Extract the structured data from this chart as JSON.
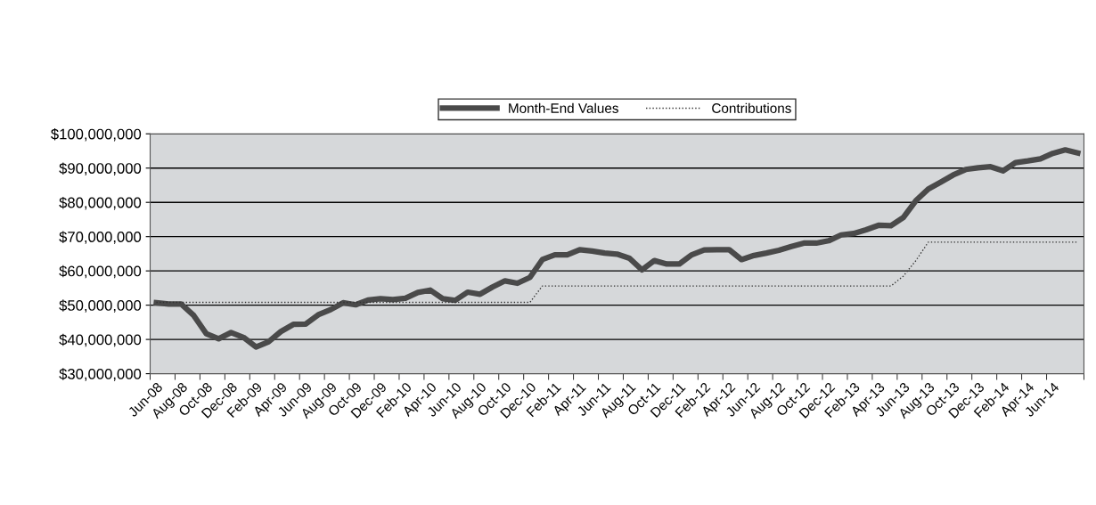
{
  "chart_data": {
    "type": "line",
    "categories": [
      "Jun-08",
      null,
      "Aug-08",
      null,
      "Oct-08",
      null,
      "Dec-08",
      null,
      "Feb-09",
      null,
      "Apr-09",
      null,
      "Jun-09",
      null,
      "Aug-09",
      null,
      "Oct-09",
      null,
      "Dec-09",
      null,
      "Feb-10",
      null,
      "Apr-10",
      null,
      "Jun-10",
      null,
      "Aug-10",
      null,
      "Oct-10",
      null,
      "Dec-10",
      null,
      "Feb-11",
      null,
      "Apr-11",
      null,
      "Jun-11",
      null,
      "Aug-11",
      null,
      "Oct-11",
      null,
      "Dec-11",
      null,
      "Feb-12",
      null,
      "Apr-12",
      null,
      "Jun-12",
      null,
      "Aug-12",
      null,
      "Oct-12",
      null,
      "Dec-12",
      null,
      "Feb-13",
      null,
      "Apr-13",
      null,
      "Jun-13",
      null,
      "Aug-13",
      null,
      "Oct-13",
      null,
      "Dec-13",
      null,
      "Feb-14",
      null,
      "Apr-14",
      null,
      "Jun-14",
      null,
      null
    ],
    "series": [
      {
        "name": "Month-End Values",
        "color": "#4a4a4a",
        "line_style": "solid",
        "values": [
          50700000,
          50300000,
          50300000,
          47000000,
          41700000,
          40200000,
          42000000,
          40600000,
          37800000,
          39300000,
          42300000,
          44400000,
          44500000,
          47200000,
          48700000,
          50700000,
          50100000,
          51500000,
          51900000,
          51600000,
          52000000,
          53700000,
          54400000,
          51900000,
          51400000,
          53800000,
          53200000,
          55300000,
          57100000,
          56400000,
          58100000,
          63300000,
          64700000,
          64700000,
          66200000,
          65800000,
          65200000,
          64900000,
          63700000,
          60300000,
          63000000,
          62000000,
          62000000,
          64700000,
          66100000,
          66200000,
          66200000,
          63300000,
          64500000,
          65200000,
          66000000,
          67100000,
          68100000,
          68100000,
          68800000,
          70500000,
          70900000,
          72000000,
          73300000,
          73200000,
          75600000,
          80500000,
          83900000,
          85900000,
          88000000,
          89600000,
          90100000,
          90400000,
          89200000,
          91600000,
          92100000,
          92700000,
          94300000,
          95300000,
          94400000
        ]
      },
      {
        "name": "Contributions",
        "color": "#333333",
        "line_style": "dotted",
        "values": [
          50800000,
          50800000,
          50800000,
          50800000,
          50800000,
          50800000,
          50800000,
          50800000,
          50800000,
          50800000,
          50800000,
          50800000,
          50800000,
          50800000,
          50800000,
          50800000,
          50800000,
          50800000,
          50800000,
          50800000,
          50800000,
          50800000,
          50800000,
          50800000,
          50800000,
          50800000,
          50800000,
          50800000,
          50800000,
          50800000,
          50800000,
          55600000,
          55600000,
          55600000,
          55600000,
          55600000,
          55600000,
          55600000,
          55600000,
          55600000,
          55600000,
          55600000,
          55600000,
          55600000,
          55600000,
          55600000,
          55600000,
          55600000,
          55600000,
          55600000,
          55600000,
          55600000,
          55600000,
          55600000,
          55600000,
          55600000,
          55600000,
          55600000,
          55600000,
          55600000,
          58500000,
          63000000,
          68400000,
          68400000,
          68400000,
          68400000,
          68400000,
          68400000,
          68400000,
          68400000,
          68400000,
          68400000,
          68400000,
          68400000,
          68400000
        ]
      }
    ],
    "ylim": [
      30000000,
      100000000
    ],
    "yticks": [
      {
        "value": 30000000,
        "label": "$30,000,000"
      },
      {
        "value": 40000000,
        "label": "$40,000,000"
      },
      {
        "value": 50000000,
        "label": "$50,000,000"
      },
      {
        "value": 60000000,
        "label": "$60,000,000"
      },
      {
        "value": 70000000,
        "label": "$70,000,000"
      },
      {
        "value": 80000000,
        "label": "$80,000,000"
      },
      {
        "value": 90000000,
        "label": "$90,000,000"
      },
      {
        "value": 100000000,
        "label": "$100,000,000"
      }
    ],
    "grid": "y",
    "legend": "top",
    "marker": "none"
  }
}
